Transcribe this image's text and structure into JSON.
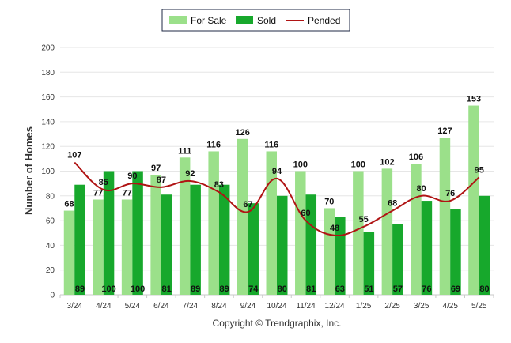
{
  "chart_data": {
    "type": "bar",
    "title": "",
    "xlabel": "",
    "ylabel": "Number of Homes",
    "ylim": [
      0,
      200
    ],
    "yticks": [
      0,
      20,
      40,
      60,
      80,
      100,
      120,
      140,
      160,
      180,
      200
    ],
    "grid": true,
    "legend_position": "top-center",
    "categories": [
      "3/24",
      "4/24",
      "5/24",
      "6/24",
      "7/24",
      "8/24",
      "9/24",
      "10/24",
      "11/24",
      "12/24",
      "1/25",
      "2/25",
      "3/25",
      "4/25",
      "5/25"
    ],
    "series": [
      {
        "name": "For Sale",
        "type": "bar",
        "color": "#9be08a",
        "values": [
          68,
          77,
          77,
          97,
          111,
          116,
          126,
          116,
          100,
          70,
          100,
          102,
          106,
          127,
          153
        ]
      },
      {
        "name": "Sold",
        "type": "bar",
        "color": "#17a82c",
        "values": [
          89,
          100,
          100,
          81,
          89,
          89,
          74,
          80,
          81,
          63,
          51,
          57,
          76,
          69,
          80
        ]
      },
      {
        "name": "Pended",
        "type": "line",
        "color": "#b01414",
        "values": [
          107,
          85,
          90,
          87,
          92,
          83,
          67,
          94,
          60,
          48,
          55,
          68,
          80,
          76,
          95
        ]
      }
    ]
  },
  "credit": "Copyright © Trendgraphix, Inc."
}
